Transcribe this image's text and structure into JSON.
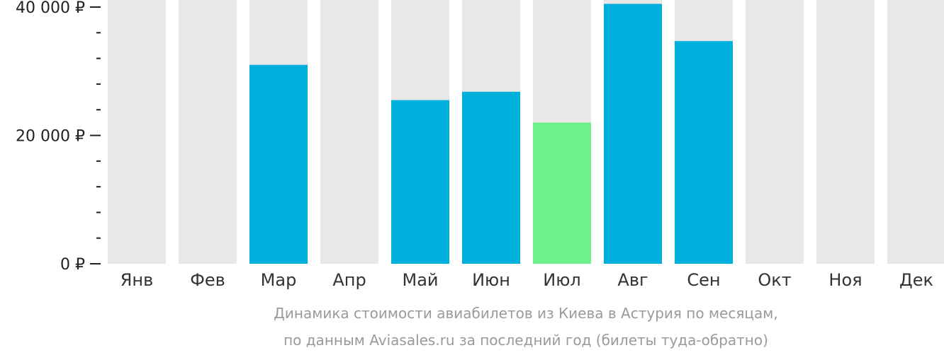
{
  "chart_data": {
    "type": "bar",
    "categories": [
      "Янв",
      "Фев",
      "Мар",
      "Апр",
      "Май",
      "Июн",
      "Июл",
      "Авг",
      "Сен",
      "Окт",
      "Ноя",
      "Дек"
    ],
    "values": [
      null,
      null,
      31000,
      null,
      25500,
      26800,
      22000,
      40500,
      34700,
      null,
      null,
      null
    ],
    "ylim": [
      0,
      40000
    ],
    "y_ticks": [
      {
        "value": 0,
        "label": "0 ₽"
      },
      {
        "value": 20000,
        "label": "20 000 ₽"
      },
      {
        "value": 40000,
        "label": "40 000 ₽"
      }
    ],
    "minor_tick_step": 4000,
    "lowest_month": "Июл",
    "colors": {
      "bar": "#00b0dc",
      "lowest_bar": "#6ef18a",
      "background_column": "#e8e8e8",
      "axis": "#222222"
    },
    "title": "Динамика стоимости авиабилетов из Киева в Астурия по месяцам,",
    "subtitle": "по данным Aviasales.ru за последний год (билеты туда-обратно)"
  }
}
